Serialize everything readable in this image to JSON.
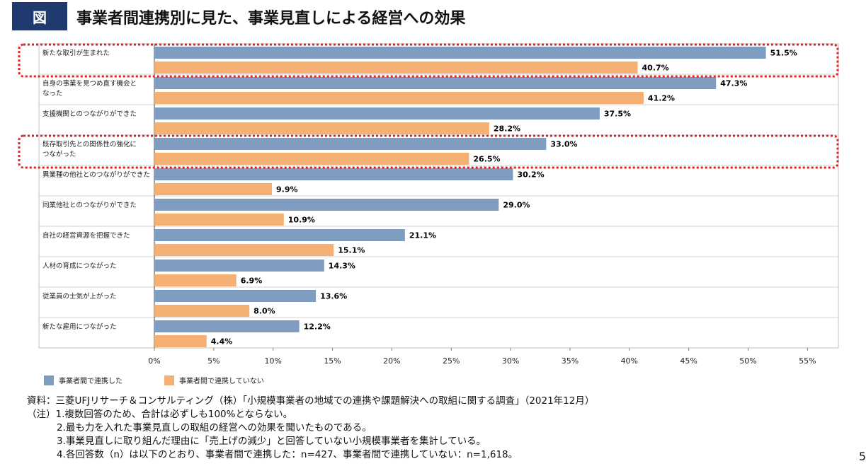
{
  "header": {
    "badge": "図",
    "title": "事業者間連携別に見た、事業見直しによる経営への効果"
  },
  "chart_data": {
    "type": "bar",
    "orientation": "horizontal",
    "categories": [
      "新たな取引が生まれた",
      "自身の事業を見つめ直す機会となった",
      "支援機関とのつながりができた",
      "既存取引先との関係性の強化につながった",
      "異業種の他社とのつながりができた",
      "同業他社とのつながりができた",
      "自社の経営資源を把握できた",
      "人材の育成につながった",
      "従業員の士気が上がった",
      "新たな雇用につながった"
    ],
    "category_lines": [
      [
        "新たな取引が生まれた"
      ],
      [
        "自身の事業を見つめ直す機会と",
        "なった"
      ],
      [
        "支援機関とのつながりができた"
      ],
      [
        "既存取引先との関係性の強化に",
        "つながった"
      ],
      [
        "異業種の他社とのつながりができた"
      ],
      [
        "同業他社とのつながりができた"
      ],
      [
        "自社の経営資源を把握できた"
      ],
      [
        "人材の育成につながった"
      ],
      [
        "従業員の士気が上がった"
      ],
      [
        "新たな雇用につながった"
      ]
    ],
    "series": [
      {
        "name": "事業者間で連携した",
        "color": "#7f9dc1",
        "values": [
          51.5,
          47.3,
          37.5,
          33.0,
          30.2,
          29.0,
          21.1,
          14.3,
          13.6,
          12.2
        ]
      },
      {
        "name": "事業者間で連携していない",
        "color": "#f4b173",
        "values": [
          40.7,
          41.2,
          28.2,
          26.5,
          9.9,
          10.9,
          15.1,
          6.9,
          8.0,
          4.4
        ]
      }
    ],
    "value_labels": [
      [
        "51.5%",
        "47.3%",
        "37.5%",
        "33.0%",
        "30.2%",
        "29.0%",
        "21.1%",
        "14.3%",
        "13.6%",
        "12.2%"
      ],
      [
        "40.7%",
        "41.2%",
        "28.2%",
        "26.5%",
        "9.9%",
        "10.9%",
        "15.1%",
        "6.9%",
        "8.0%",
        "4.4%"
      ]
    ],
    "xlim": [
      0,
      55
    ],
    "x_ticks": [
      "0%",
      "5%",
      "10%",
      "15%",
      "20%",
      "25%",
      "30%",
      "35%",
      "40%",
      "45%",
      "50%",
      "55%"
    ],
    "grid": "horizontal category separators",
    "highlighted_categories": [
      0,
      3
    ],
    "highlight_color": "#e02020",
    "legend_position": "bottom-left"
  },
  "legend": {
    "item1": "事業者間で連携した",
    "item2": "事業者間で連携していない"
  },
  "notes": {
    "source": "資料：三菱UFJリサーチ＆コンサルティング（株）「小規模事業者の地域での連携や課題解決への取組に関する調査」（2021年12月）",
    "note1": "（注）1.複数回答のため、合計は必ずしも100%とならない。",
    "note2": "2.最も力を入れた事業見直しの取組の経営への効果を聞いたものである。",
    "note3": "3.事業見直しに取り組んだ理由に「売上げの減少」と回答していない小規模事業者を集計している。",
    "note4": "4.各回答数（n）は以下のとおり、事業者間で連携した：n=427、事業者間で連携していない：n=1,618。"
  },
  "page_number": "5"
}
